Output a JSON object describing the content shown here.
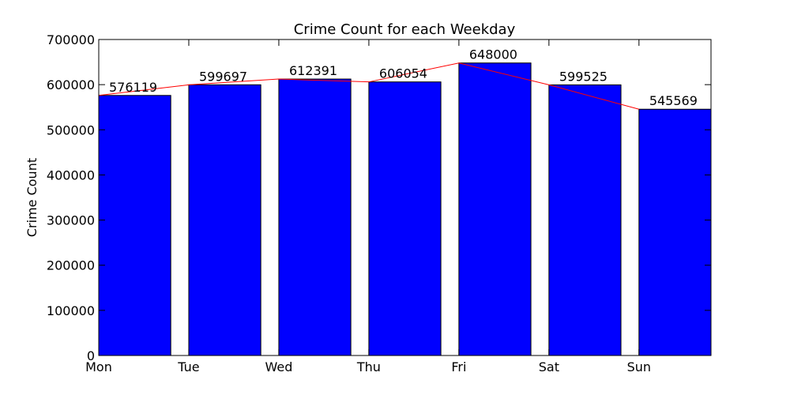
{
  "chart_data": {
    "type": "bar",
    "title": "Crime Count for each Weekday",
    "xlabel": "",
    "ylabel": "Crime Count",
    "categories": [
      "Mon",
      "Tue",
      "Wed",
      "Thu",
      "Fri",
      "Sat",
      "Sun"
    ],
    "values": [
      576119,
      599697,
      612391,
      606054,
      648000,
      599525,
      545569
    ],
    "ylim": [
      0,
      700000
    ],
    "yticks": [
      "0",
      "100000",
      "200000",
      "300000",
      "400000",
      "500000",
      "600000",
      "700000"
    ],
    "bar_color": "#0000ff",
    "line_color": "#ff0000",
    "grid": false,
    "legend": "none"
  }
}
